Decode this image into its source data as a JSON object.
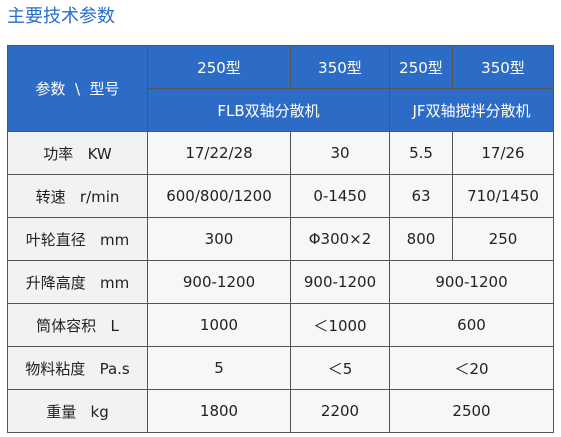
{
  "title": "主要技术参数",
  "table": {
    "corner": "参数  \\  型号",
    "models": [
      "250型",
      "350型",
      "250型",
      "350型"
    ],
    "machines": [
      "FLB双轴分散机",
      "JF双轴搅拌分散机"
    ],
    "rows": [
      [
        "功率   KW",
        "17/22/28",
        "30",
        "5.5",
        "17/26"
      ],
      [
        "转速   r/min",
        "600/800/1200",
        "0-1450",
        "63",
        "710/1450"
      ],
      [
        "叶轮直径   mm",
        "300",
        "Φ300×2",
        "800",
        "250"
      ],
      [
        "升降高度   mm",
        "900-1200",
        "900-1200",
        "900-1200"
      ],
      [
        "筒体容积   L",
        "1000",
        "＜1000",
        "600"
      ],
      [
        "物料粘度   Pa.s",
        "5",
        "＜5",
        "＜20"
      ],
      [
        "重量   kg",
        "1800",
        "2200",
        "2500"
      ]
    ]
  }
}
